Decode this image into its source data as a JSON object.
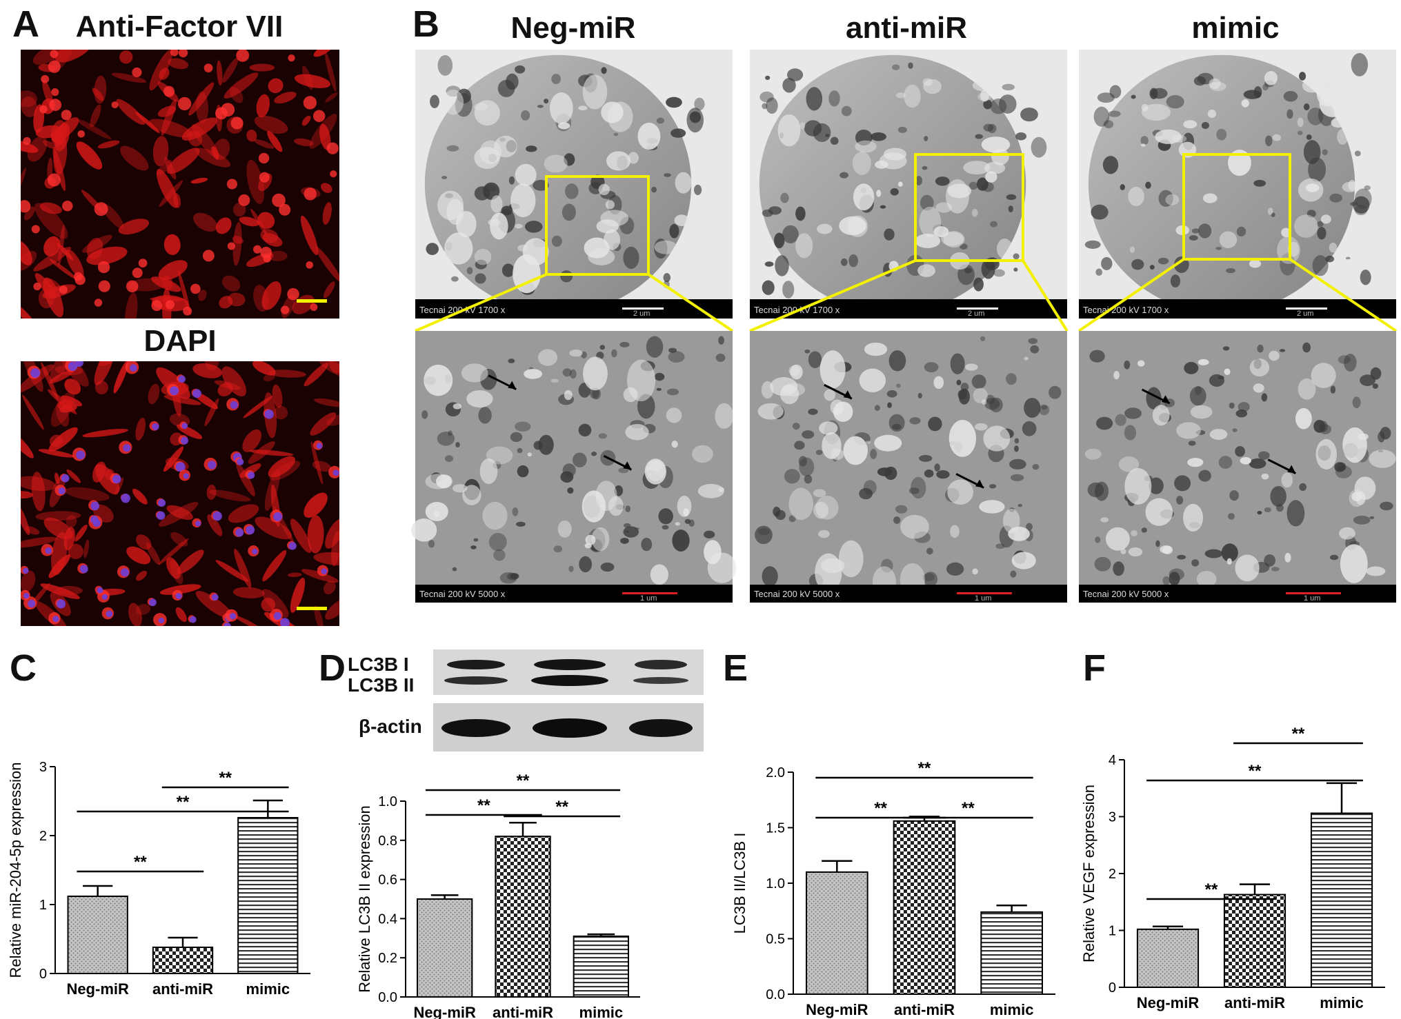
{
  "panels": {
    "A": {
      "letter": "A",
      "title_top": "Anti-Factor VII",
      "title_bottom": "DAPI"
    },
    "B": {
      "letter": "B",
      "columns": [
        "Neg-miR",
        "anti-miR",
        "mimic"
      ],
      "scale_low": "Tecnai  200 kV   1700 x",
      "scale_high": "Tecnai  200 kV   5000 x",
      "bar_low": "2 um",
      "bar_high": "1 um"
    },
    "C": {
      "letter": "C"
    },
    "D": {
      "letter": "D",
      "blot_labels": [
        "LC3B I",
        "LC3B II",
        "β-actin"
      ]
    },
    "E": {
      "letter": "E"
    },
    "F": {
      "letter": "F"
    }
  },
  "colors": {
    "fluor_red": "#d81818",
    "nuclei_blue": "#6a40d8",
    "em_gray": "#8a8a8a",
    "highlight": "#f3f000"
  },
  "chart_data": [
    {
      "id": "C",
      "type": "bar",
      "categories": [
        "Neg-miR",
        "anti-miR",
        "mimic"
      ],
      "values": [
        1.12,
        0.38,
        2.26
      ],
      "errors": [
        0.15,
        0.14,
        0.25
      ],
      "ylabel": "Relative miR-204-5p expression",
      "ylim": [
        0,
        3
      ],
      "yticks": [
        0,
        1,
        2,
        3
      ],
      "significance": [
        {
          "from": 0,
          "to": 1,
          "label": "**"
        },
        {
          "from": 0,
          "to": 2,
          "label": "**"
        },
        {
          "from": 1,
          "to": 2,
          "label": "**"
        }
      ]
    },
    {
      "id": "D",
      "type": "bar",
      "categories": [
        "Neg-miR",
        "anti-miR",
        "mimic"
      ],
      "values": [
        0.5,
        0.82,
        0.31
      ],
      "errors": [
        0.02,
        0.07,
        0.01
      ],
      "ylabel": "Relative LC3B II expression",
      "ylim": [
        0,
        1.0
      ],
      "yticks": [
        0.0,
        0.2,
        0.4,
        0.6,
        0.8,
        1.0
      ],
      "significance": [
        {
          "from": 0,
          "to": 1,
          "label": "**"
        },
        {
          "from": 1,
          "to": 2,
          "label": "**"
        },
        {
          "from": 0,
          "to": 2,
          "label": "**"
        }
      ]
    },
    {
      "id": "E",
      "type": "bar",
      "categories": [
        "Neg-miR",
        "anti-miR",
        "mimic"
      ],
      "values": [
        1.1,
        1.56,
        0.74
      ],
      "errors": [
        0.1,
        0.04,
        0.06
      ],
      "ylabel": "LC3B II/LC3B I",
      "ylim": [
        0,
        2.0
      ],
      "yticks": [
        0.0,
        0.5,
        1.0,
        1.5,
        2.0
      ],
      "significance": [
        {
          "from": 0,
          "to": 1,
          "label": "**"
        },
        {
          "from": 1,
          "to": 2,
          "label": "**"
        },
        {
          "from": 0,
          "to": 2,
          "label": "**"
        }
      ]
    },
    {
      "id": "F",
      "type": "bar",
      "categories": [
        "Neg-miR",
        "anti-miR",
        "mimic"
      ],
      "values": [
        1.02,
        1.63,
        3.06
      ],
      "errors": [
        0.05,
        0.18,
        0.53
      ],
      "ylabel": "Relative VEGF expression",
      "ylim": [
        0,
        4
      ],
      "yticks": [
        0,
        1,
        2,
        3,
        4
      ],
      "significance": [
        {
          "from": 0,
          "to": 1,
          "label": "**"
        },
        {
          "from": 0,
          "to": 2,
          "label": "**"
        },
        {
          "from": 1,
          "to": 2,
          "label": "**"
        }
      ]
    }
  ]
}
